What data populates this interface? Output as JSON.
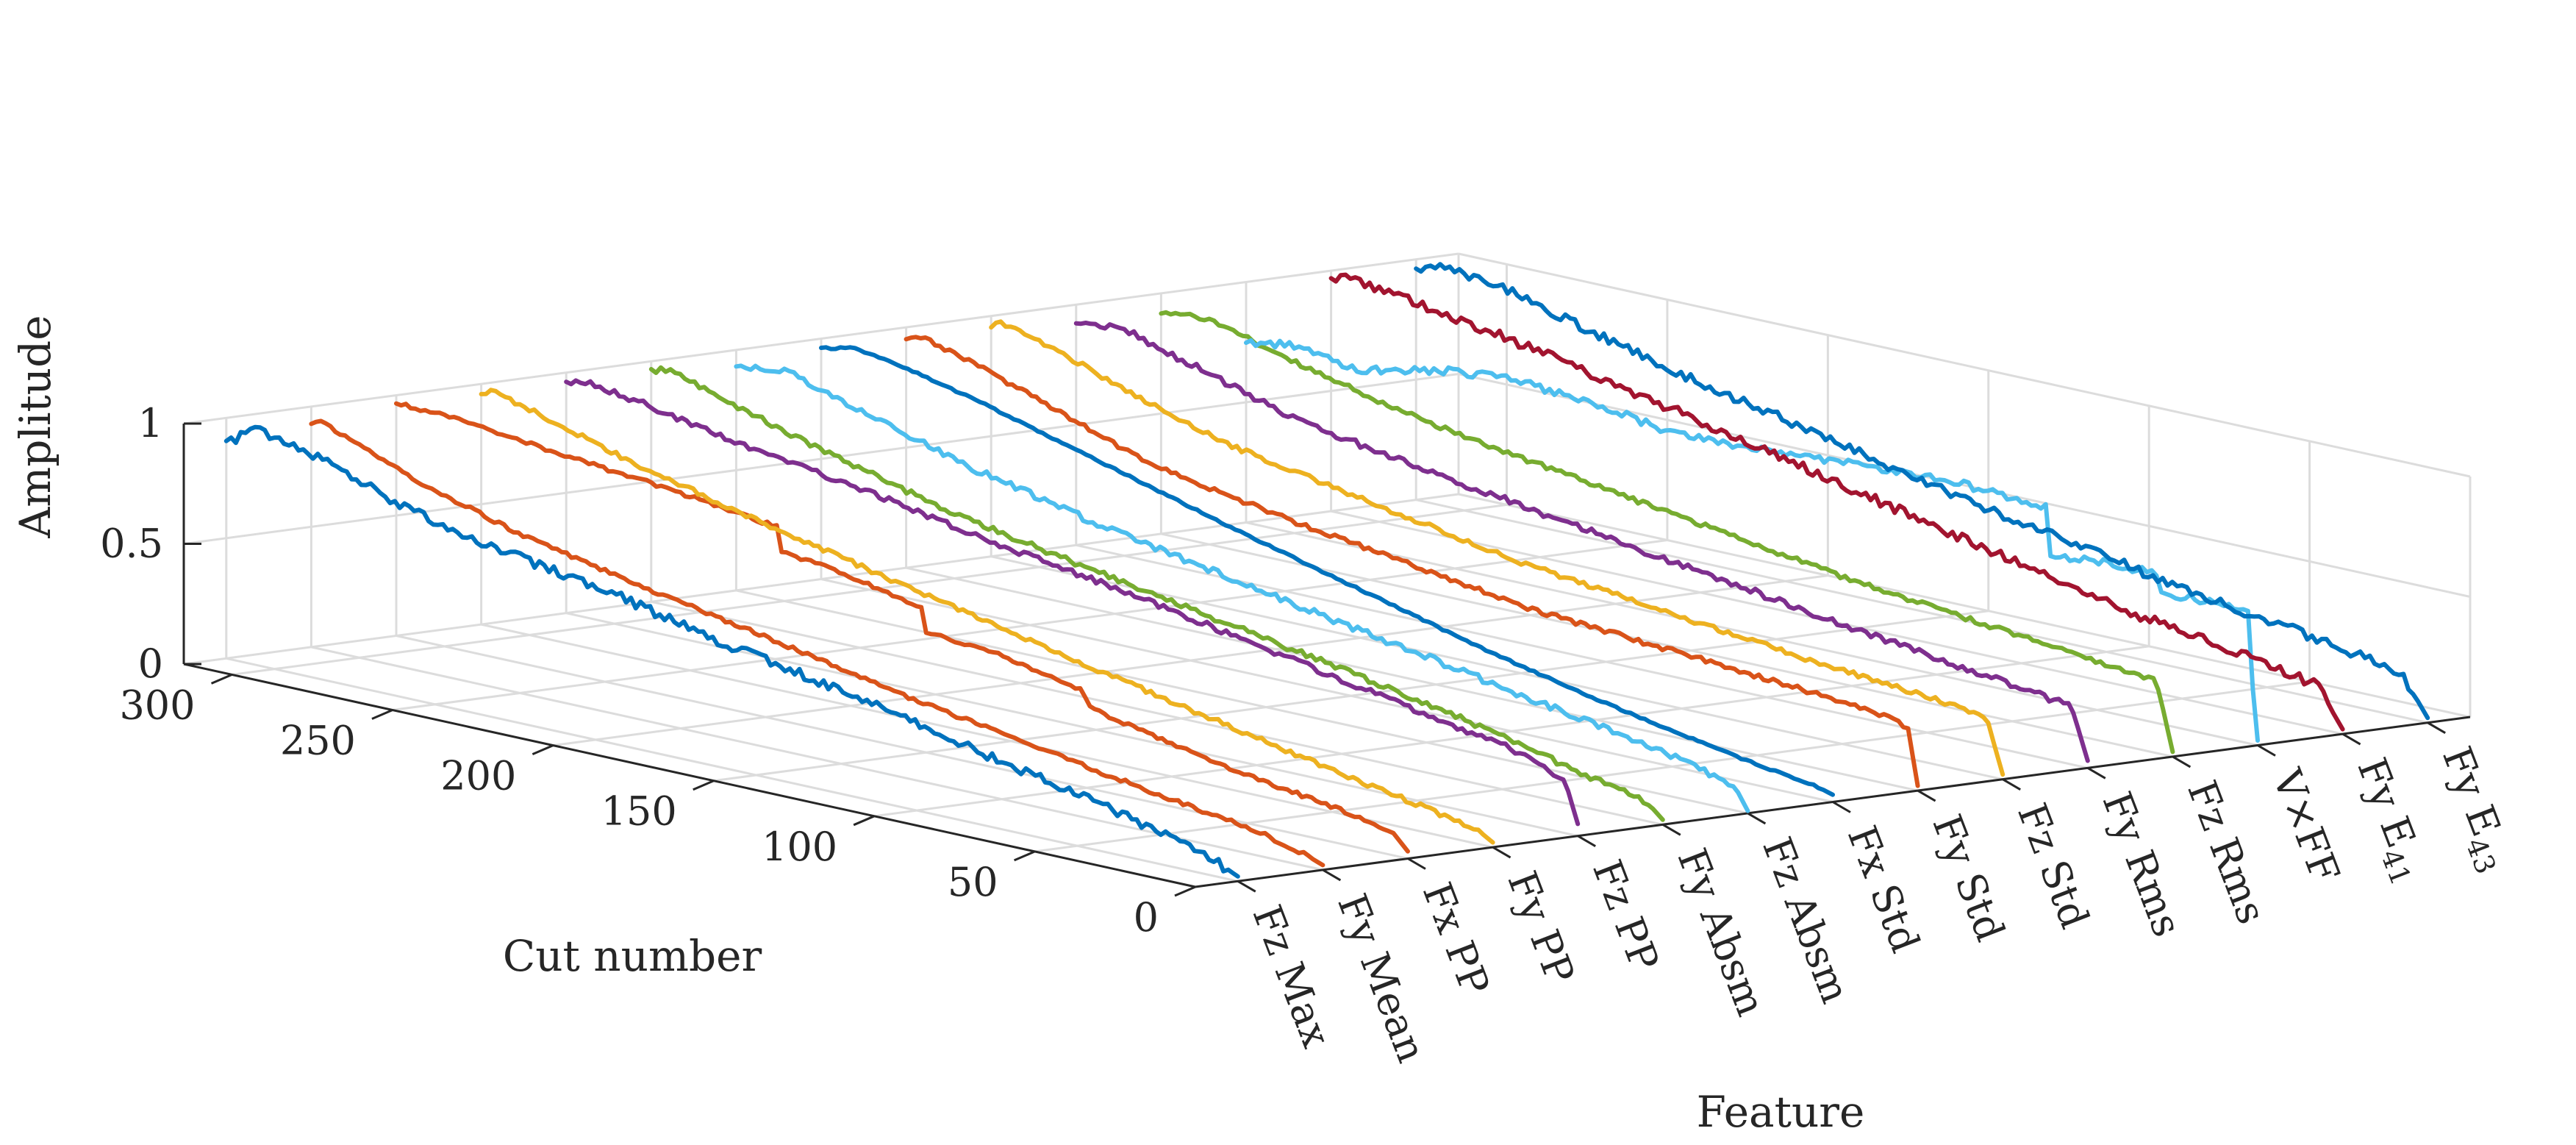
{
  "chart_data": {
    "type": "line3d",
    "title": "",
    "xlabel": "Feature",
    "ylabel": "Cut number",
    "zlabel": "Amplitude",
    "zlim": [
      0,
      1
    ],
    "ylim": [
      0,
      315
    ],
    "z_ticks": [
      0,
      0.5,
      1
    ],
    "z_tick_labels": [
      "0",
      "0.5",
      "1"
    ],
    "y_ticks": [
      0,
      50,
      100,
      150,
      200,
      250,
      300
    ],
    "y_tick_labels": [
      "0",
      "50",
      "100",
      "150",
      "200",
      "250",
      "300"
    ],
    "features": [
      {
        "prefix": "Fz Max",
        "sub": ""
      },
      {
        "prefix": "Fy Mean",
        "sub": ""
      },
      {
        "prefix": "Fx PP",
        "sub": ""
      },
      {
        "prefix": "Fy PP",
        "sub": ""
      },
      {
        "prefix": "Fz PP",
        "sub": ""
      },
      {
        "prefix": "Fy Absm",
        "sub": ""
      },
      {
        "prefix": "Fz Absm",
        "sub": ""
      },
      {
        "prefix": "Fx Std",
        "sub": ""
      },
      {
        "prefix": "Fy Std",
        "sub": ""
      },
      {
        "prefix": "Fz Std",
        "sub": ""
      },
      {
        "prefix": "Fy Rms",
        "sub": ""
      },
      {
        "prefix": "Fz Rms",
        "sub": ""
      },
      {
        "prefix": "V×FF",
        "sub": ""
      },
      {
        "prefix": "Fy E",
        "sub": "41"
      },
      {
        "prefix": "Fy E",
        "sub": "43"
      }
    ],
    "colors": [
      "#0072BD",
      "#D95319",
      "#EDB120",
      "#7E2F8E",
      "#77AC30",
      "#4DBEEE",
      "#A2142F"
    ],
    "series": [
      {
        "name": "Fz Max",
        "color": "#0072BD",
        "noise": 0.02,
        "points": [
          [
            0,
            0.02
          ],
          [
            8,
            0.07
          ],
          [
            20,
            0.12
          ],
          [
            45,
            0.2
          ],
          [
            80,
            0.3
          ],
          [
            120,
            0.42
          ],
          [
            160,
            0.52
          ],
          [
            200,
            0.64
          ],
          [
            240,
            0.72
          ],
          [
            262,
            0.8
          ],
          [
            285,
            0.92
          ],
          [
            305,
            0.98
          ],
          [
            315,
            0.9
          ]
        ]
      },
      {
        "name": "Fy Mean",
        "color": "#D95319",
        "noise": 0.008,
        "points": [
          [
            0,
            0.02
          ],
          [
            6,
            0.05
          ],
          [
            20,
            0.1
          ],
          [
            50,
            0.16
          ],
          [
            90,
            0.25
          ],
          [
            130,
            0.34
          ],
          [
            170,
            0.45
          ],
          [
            210,
            0.55
          ],
          [
            250,
            0.66
          ],
          [
            280,
            0.78
          ],
          [
            300,
            0.88
          ],
          [
            312,
            0.95
          ],
          [
            315,
            0.93
          ]
        ]
      },
      {
        "name": "Fx PP",
        "color": "#D95319",
        "noise": 0.008,
        "points": [
          [
            0,
            0.03
          ],
          [
            5,
            0.1
          ],
          [
            20,
            0.14
          ],
          [
            60,
            0.22
          ],
          [
            100,
            0.34
          ],
          [
            101,
            0.4
          ],
          [
            130,
            0.48
          ],
          [
            150,
            0.5
          ],
          [
            151,
            0.6
          ],
          [
            180,
            0.68
          ],
          [
            195,
            0.7
          ],
          [
            196,
            0.8
          ],
          [
            230,
            0.86
          ],
          [
            260,
            0.9
          ],
          [
            290,
            0.95
          ],
          [
            315,
            0.97
          ]
        ]
      },
      {
        "name": "Fy PP",
        "color": "#EDB120",
        "noise": 0.01,
        "points": [
          [
            0,
            0.02
          ],
          [
            5,
            0.06
          ],
          [
            20,
            0.1
          ],
          [
            60,
            0.2
          ],
          [
            110,
            0.34
          ],
          [
            160,
            0.48
          ],
          [
            200,
            0.6
          ],
          [
            240,
            0.72
          ],
          [
            270,
            0.82
          ],
          [
            295,
            0.92
          ],
          [
            312,
            0.98
          ],
          [
            315,
            0.96
          ]
        ]
      },
      {
        "name": "Fz PP",
        "color": "#7E2F8E",
        "noise": 0.012,
        "points": [
          [
            0,
            0.05
          ],
          [
            4,
            0.22
          ],
          [
            20,
            0.3
          ],
          [
            60,
            0.4
          ],
          [
            100,
            0.5
          ],
          [
            140,
            0.6
          ],
          [
            180,
            0.68
          ],
          [
            220,
            0.78
          ],
          [
            260,
            0.86
          ],
          [
            290,
            0.94
          ],
          [
            310,
            0.98
          ],
          [
            315,
            0.95
          ]
        ]
      },
      {
        "name": "Fy Absm",
        "color": "#77AC30",
        "noise": 0.012,
        "points": [
          [
            0,
            0.02
          ],
          [
            5,
            0.08
          ],
          [
            25,
            0.14
          ],
          [
            70,
            0.28
          ],
          [
            120,
            0.4
          ],
          [
            170,
            0.52
          ],
          [
            220,
            0.64
          ],
          [
            260,
            0.78
          ],
          [
            290,
            0.9
          ],
          [
            310,
            0.98
          ],
          [
            315,
            0.96
          ]
        ]
      },
      {
        "name": "Fz Absm",
        "color": "#4DBEEE",
        "noise": 0.014,
        "points": [
          [
            0,
            0.01
          ],
          [
            4,
            0.1
          ],
          [
            20,
            0.16
          ],
          [
            60,
            0.26
          ],
          [
            110,
            0.38
          ],
          [
            160,
            0.5
          ],
          [
            200,
            0.6
          ],
          [
            240,
            0.72
          ],
          [
            275,
            0.86
          ],
          [
            300,
            0.96
          ],
          [
            315,
            0.93
          ]
        ]
      },
      {
        "name": "Fx Std",
        "color": "#0072BD",
        "noise": 0.004,
        "points": [
          [
            0,
            0.03
          ],
          [
            5,
            0.05
          ],
          [
            30,
            0.1
          ],
          [
            70,
            0.2
          ],
          [
            110,
            0.32
          ],
          [
            150,
            0.46
          ],
          [
            190,
            0.6
          ],
          [
            230,
            0.75
          ],
          [
            265,
            0.88
          ],
          [
            290,
            0.96
          ],
          [
            305,
            0.99
          ],
          [
            315,
            0.96
          ]
        ]
      },
      {
        "name": "Fy Std",
        "color": "#D95319",
        "noise": 0.01,
        "points": [
          [
            0,
            0.02
          ],
          [
            3,
            0.25
          ],
          [
            10,
            0.28
          ],
          [
            40,
            0.32
          ],
          [
            80,
            0.36
          ],
          [
            120,
            0.4
          ],
          [
            160,
            0.48
          ],
          [
            200,
            0.56
          ],
          [
            240,
            0.66
          ],
          [
            270,
            0.8
          ],
          [
            295,
            0.92
          ],
          [
            310,
            0.97
          ],
          [
            315,
            0.95
          ]
        ]
      },
      {
        "name": "Fz Std",
        "color": "#EDB120",
        "noise": 0.01,
        "points": [
          [
            0,
            0.02
          ],
          [
            5,
            0.24
          ],
          [
            20,
            0.27
          ],
          [
            60,
            0.32
          ],
          [
            100,
            0.38
          ],
          [
            150,
            0.46
          ],
          [
            200,
            0.58
          ],
          [
            240,
            0.68
          ],
          [
            270,
            0.8
          ],
          [
            295,
            0.92
          ],
          [
            312,
            0.98
          ],
          [
            315,
            0.96
          ]
        ]
      },
      {
        "name": "Fy Rms",
        "color": "#7E2F8E",
        "noise": 0.014,
        "points": [
          [
            0,
            0.03
          ],
          [
            5,
            0.24
          ],
          [
            20,
            0.27
          ],
          [
            60,
            0.34
          ],
          [
            100,
            0.42
          ],
          [
            140,
            0.5
          ],
          [
            180,
            0.58
          ],
          [
            220,
            0.66
          ],
          [
            250,
            0.74
          ],
          [
            280,
            0.86
          ],
          [
            300,
            0.94
          ],
          [
            315,
            0.93
          ]
        ]
      },
      {
        "name": "Fz Rms",
        "color": "#77AC30",
        "noise": 0.01,
        "points": [
          [
            0,
            0.02
          ],
          [
            5,
            0.3
          ],
          [
            20,
            0.32
          ],
          [
            60,
            0.38
          ],
          [
            100,
            0.44
          ],
          [
            140,
            0.52
          ],
          [
            180,
            0.6
          ],
          [
            220,
            0.68
          ],
          [
            250,
            0.76
          ],
          [
            280,
            0.86
          ],
          [
            300,
            0.94
          ],
          [
            315,
            0.92
          ]
        ]
      },
      {
        "name": "V×FF",
        "color": "#4DBEEE",
        "noise": 0.016,
        "points": [
          [
            0,
            0.02
          ],
          [
            2,
            0.3
          ],
          [
            3,
            0.55
          ],
          [
            20,
            0.55
          ],
          [
            30,
            0.55
          ],
          [
            31,
            0.62
          ],
          [
            50,
            0.62
          ],
          [
            65,
            0.6
          ],
          [
            66,
            0.8
          ],
          [
            100,
            0.82
          ],
          [
            150,
            0.78
          ],
          [
            180,
            0.76
          ],
          [
            200,
            0.8
          ],
          [
            230,
            0.84
          ],
          [
            250,
            0.82
          ],
          [
            280,
            0.74
          ],
          [
            300,
            0.78
          ],
          [
            315,
            0.75
          ]
        ]
      },
      {
        "name": "Fy E41",
        "color": "#A2142F",
        "noise": 0.02,
        "points": [
          [
            0,
            0.02
          ],
          [
            8,
            0.18
          ],
          [
            30,
            0.24
          ],
          [
            70,
            0.32
          ],
          [
            110,
            0.44
          ],
          [
            150,
            0.56
          ],
          [
            190,
            0.68
          ],
          [
            230,
            0.8
          ],
          [
            260,
            0.88
          ],
          [
            290,
            0.95
          ],
          [
            310,
            0.98
          ],
          [
            315,
            0.96
          ]
        ]
      },
      {
        "name": "Fy E43",
        "color": "#0072BD",
        "noise": 0.02,
        "points": [
          [
            0,
            0.02
          ],
          [
            8,
            0.18
          ],
          [
            30,
            0.24
          ],
          [
            70,
            0.32
          ],
          [
            110,
            0.42
          ],
          [
            150,
            0.52
          ],
          [
            190,
            0.64
          ],
          [
            230,
            0.76
          ],
          [
            260,
            0.86
          ],
          [
            285,
            0.95
          ],
          [
            305,
            0.99
          ],
          [
            315,
            0.97
          ]
        ]
      }
    ]
  }
}
